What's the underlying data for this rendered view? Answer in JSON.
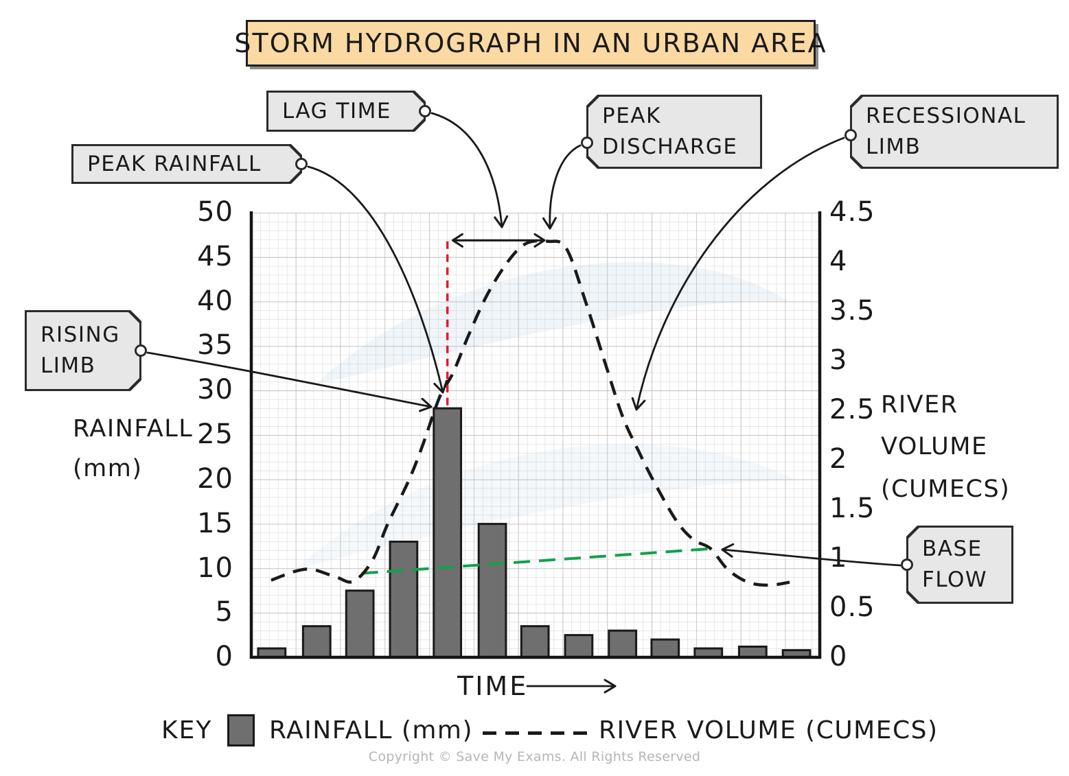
{
  "title": "STORM HYDROGRAPH IN AN URBAN AREA",
  "tags": {
    "lag_time": {
      "lines": [
        "LAG TIME"
      ]
    },
    "peak_rainfall": {
      "lines": [
        "PEAK RAINFALL"
      ]
    },
    "peak_discharge": {
      "lines": [
        "PEAK",
        "DISCHARGE"
      ]
    },
    "recessional_limb": {
      "lines": [
        "RECESSIONAL",
        "LIMB"
      ]
    },
    "rising_limb": {
      "lines": [
        "RISING",
        "LIMB"
      ]
    },
    "base_flow": {
      "lines": [
        "BASE",
        "FLOW"
      ]
    }
  },
  "axes": {
    "left": {
      "title_lines": [
        "RAINFALL",
        "(mm)"
      ],
      "ticks": [
        "50",
        "45",
        "40",
        "35",
        "30",
        "25",
        "20",
        "15",
        "10",
        "5",
        "0"
      ]
    },
    "right": {
      "title_lines": [
        "RIVER",
        "VOLUME",
        "(CUMECS)"
      ],
      "ticks": [
        "4.5",
        "4",
        "3.5",
        "3",
        "2.5",
        "2",
        "1.5",
        "1",
        "0.5",
        "0"
      ]
    },
    "x": {
      "label": "TIME"
    }
  },
  "key": {
    "label": "KEY",
    "rainfall_label": "RAINFALL (mm)",
    "river_label": "RIVER  VOLUME (CUMECS)"
  },
  "copyright": "Copyright © Save My Exams. All Rights Reserved",
  "chart_data": {
    "type": "combo_bar_line",
    "title": "STORM HYDROGRAPH IN AN URBAN AREA",
    "x_axis": {
      "label": "TIME",
      "units": "relative position 0-100, no numeric scale shown"
    },
    "left_axis": {
      "label": "RAINFALL (mm)",
      "min": 0,
      "max": 50,
      "tick_step": 5
    },
    "right_axis": {
      "label": "RIVER VOLUME (CUMECS)",
      "min": 0,
      "max": 4.5,
      "tick_step": 0.5
    },
    "grid": {
      "minor_step_mm": 1,
      "major_step_mm": 5
    },
    "bar_width_t": 4.8,
    "rainfall_bars_mm": {
      "series_name": "RAINFALL (mm)",
      "points": [
        {
          "t": 3.6,
          "mm": 1
        },
        {
          "t": 11.5,
          "mm": 3.5
        },
        {
          "t": 19.1,
          "mm": 7.5
        },
        {
          "t": 26.8,
          "mm": 13
        },
        {
          "t": 34.5,
          "mm": 28
        },
        {
          "t": 42.4,
          "mm": 15
        },
        {
          "t": 49.9,
          "mm": 3.5
        },
        {
          "t": 57.6,
          "mm": 2.5
        },
        {
          "t": 65.3,
          "mm": 3
        },
        {
          "t": 72.8,
          "mm": 2
        },
        {
          "t": 80.4,
          "mm": 1
        },
        {
          "t": 88.2,
          "mm": 1.2
        },
        {
          "t": 95.9,
          "mm": 0.8
        }
      ]
    },
    "river_volume_cumecs": {
      "series_name": "RIVER VOLUME (CUMECS)",
      "points": [
        {
          "t": 3.5,
          "v": 0.78
        },
        {
          "t": 7.7,
          "v": 0.87
        },
        {
          "t": 10.7,
          "v": 0.89
        },
        {
          "t": 15.0,
          "v": 0.81
        },
        {
          "t": 18.0,
          "v": 0.77
        },
        {
          "t": 21.3,
          "v": 0.98
        },
        {
          "t": 24.0,
          "v": 1.35
        },
        {
          "t": 27.7,
          "v": 1.79
        },
        {
          "t": 30.1,
          "v": 2.14
        },
        {
          "t": 33.1,
          "v": 2.63
        },
        {
          "t": 35.5,
          "v": 2.88
        },
        {
          "t": 38.3,
          "v": 3.27
        },
        {
          "t": 41.5,
          "v": 3.67
        },
        {
          "t": 45.2,
          "v": 4.01
        },
        {
          "t": 48.4,
          "v": 4.19
        },
        {
          "t": 52.2,
          "v": 4.21
        },
        {
          "t": 55.4,
          "v": 4.14
        },
        {
          "t": 58.8,
          "v": 3.6
        },
        {
          "t": 62.4,
          "v": 2.95
        },
        {
          "t": 65.3,
          "v": 2.44
        },
        {
          "t": 68.1,
          "v": 2.09
        },
        {
          "t": 70.9,
          "v": 1.77
        },
        {
          "t": 74.8,
          "v": 1.38
        },
        {
          "t": 77.8,
          "v": 1.19
        },
        {
          "t": 80.8,
          "v": 1.1
        },
        {
          "t": 83.8,
          "v": 0.89
        },
        {
          "t": 87.4,
          "v": 0.76
        },
        {
          "t": 91.1,
          "v": 0.73
        },
        {
          "t": 94.7,
          "v": 0.76
        }
      ]
    },
    "base_flow_cumecs": {
      "series_name": "BASE FLOW",
      "points": [
        {
          "t": 19.4,
          "v": 0.85
        },
        {
          "t": 81.0,
          "v": 1.1
        }
      ]
    },
    "annotations": {
      "peak_rainfall": {
        "t": 34.5,
        "mm": 28
      },
      "peak_discharge": {
        "t": 52.2,
        "v": 4.2
      },
      "lag_time_arrow": {
        "t1": 35.2,
        "t2": 51.8,
        "v": 4.22
      },
      "peak_rainfall_marker_line": {
        "t": 34.5,
        "from_v": 2.55,
        "to_v": 4.22
      }
    },
    "colors": {
      "bar": "#6f6f6f",
      "bar_border": "#191919",
      "river": "#1a1a1a",
      "base_flow": "#12a14b",
      "peak_line": "#e3192c",
      "grid_minor": "#cfcfcf",
      "grid_major": "#b6b6b6",
      "title_bg": "#fbd9a2",
      "tag_bg": "#e7e7e7",
      "tag_border": "#2b2b2b"
    }
  }
}
